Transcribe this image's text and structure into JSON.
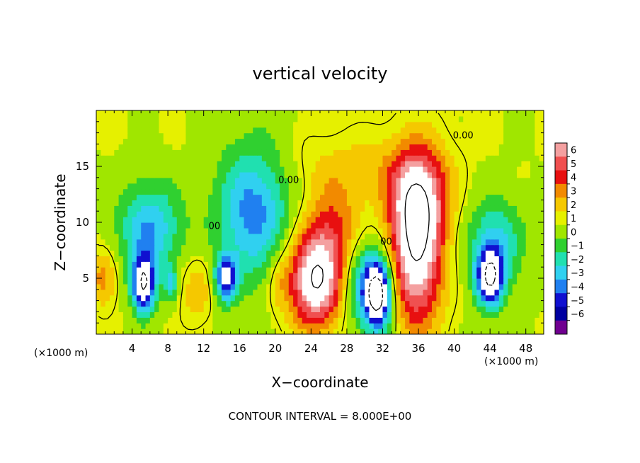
{
  "chart_data": {
    "type": "heatmap",
    "title": "vertical velocity",
    "xlabel": "X−coordinate",
    "ylabel": "Z−coordinate",
    "x_unit_left": "(×1000 m)",
    "x_unit_right": "(×1000 m)",
    "footer": "CONTOUR INTERVAL = 8.000E+00",
    "xlim": [
      0,
      50
    ],
    "ylim": [
      0,
      20
    ],
    "x_ticks": [
      4,
      8,
      12,
      16,
      20,
      24,
      28,
      32,
      36,
      40,
      44,
      48
    ],
    "y_ticks": [
      5,
      10,
      15
    ],
    "colorbar": {
      "levels": [
        6,
        5,
        4,
        3,
        2,
        1,
        0,
        -1,
        -2,
        -3,
        -4,
        -5,
        -6
      ],
      "labels": [
        "6",
        "5",
        "4",
        "3",
        "2",
        "1",
        "0",
        "−1",
        "−2",
        "−3",
        "−4",
        "−5",
        "−6"
      ],
      "colors": [
        "#f4a0a0",
        "#f05050",
        "#e81010",
        "#f28a00",
        "#f5c800",
        "#e6f000",
        "#a0e600",
        "#30d030",
        "#20e0b0",
        "#30d0f0",
        "#2080f0",
        "#1010d0",
        "#0000a0",
        "#700090"
      ]
    },
    "contour_labels": [
      {
        "text": "0.00",
        "x": 21.5,
        "y": 13.5
      },
      {
        "text": "0.00",
        "x": 41.0,
        "y": 17.5
      },
      {
        "text": "00",
        "x": 13.2,
        "y": 9.4
      },
      {
        "text": "00",
        "x": 32.4,
        "y": 8.0
      }
    ],
    "features": [
      {
        "kind": "updraft",
        "x": 24.5,
        "z": 4.8,
        "rx": 2.8,
        "rz": 4.0,
        "peak": 8.0
      },
      {
        "kind": "updraft",
        "x": 35.8,
        "z": 8.0,
        "rx": 2.8,
        "rz": 7.0,
        "peak": 8.0
      },
      {
        "kind": "updraft",
        "x": 26.5,
        "z": 9.5,
        "rx": 3.0,
        "rz": 4.0,
        "peak": 3.0
      },
      {
        "kind": "updraft",
        "x": 36.0,
        "z": 12.5,
        "rx": 3.5,
        "rz": 4.0,
        "peak": 3.5
      },
      {
        "kind": "updraft",
        "x": 29.0,
        "z": 15.0,
        "rx": 8.0,
        "rz": 3.0,
        "peak": 1.2
      },
      {
        "kind": "updraft",
        "x": 0.8,
        "z": 5.0,
        "rx": 1.5,
        "rz": 2.5,
        "peak": 2.5
      },
      {
        "kind": "updraft",
        "x": 11.2,
        "z": 4.0,
        "rx": 1.8,
        "rz": 3.0,
        "peak": 1.8
      },
      {
        "kind": "updraft",
        "x": 20.5,
        "z": 5.0,
        "rx": 1.5,
        "rz": 3.0,
        "peak": 1.5
      },
      {
        "kind": "downdraft",
        "x": 5.3,
        "z": 4.5,
        "rx": 1.3,
        "rz": 2.5,
        "peak": -8.0
      },
      {
        "kind": "downdraft",
        "x": 6.0,
        "z": 9.5,
        "rx": 3.5,
        "rz": 4.0,
        "peak": -4.0
      },
      {
        "kind": "downdraft",
        "x": 8.3,
        "z": 4.5,
        "rx": 0.7,
        "rz": 1.5,
        "peak": -3.0
      },
      {
        "kind": "downdraft",
        "x": 14.5,
        "z": 5.0,
        "rx": 1.2,
        "rz": 2.0,
        "peak": -6.0
      },
      {
        "kind": "downdraft",
        "x": 17.5,
        "z": 11.0,
        "rx": 4.0,
        "rz": 6.0,
        "peak": -4.5
      },
      {
        "kind": "downdraft",
        "x": 31.5,
        "z": 3.5,
        "rx": 1.5,
        "rz": 3.0,
        "peak": -8.0
      },
      {
        "kind": "downdraft",
        "x": 30.2,
        "z": 4.5,
        "rx": 2.5,
        "rz": 4.0,
        "peak": -3.5
      },
      {
        "kind": "downdraft",
        "x": 44.0,
        "z": 5.0,
        "rx": 1.5,
        "rz": 2.5,
        "peak": -7.0
      },
      {
        "kind": "downdraft",
        "x": 44.5,
        "z": 8.0,
        "rx": 3.0,
        "rz": 4.0,
        "peak": -3.5
      }
    ],
    "grid": false,
    "legend": "right colorbar"
  }
}
